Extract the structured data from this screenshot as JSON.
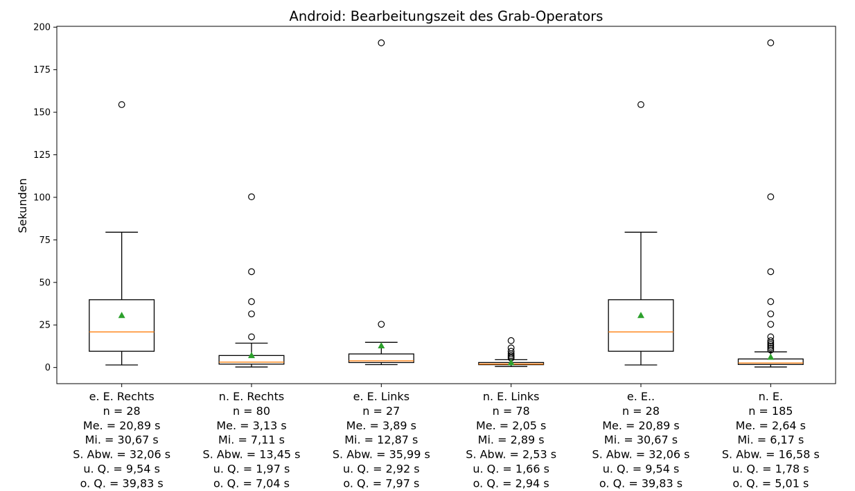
{
  "chart_data": {
    "type": "box",
    "title": "Android: Bearbeitungszeit des Grab-Operators",
    "xlabel": "",
    "ylabel": "Sekunden",
    "ylim": [
      -9.5,
      200.5
    ],
    "yticks": [
      0,
      25,
      50,
      75,
      100,
      125,
      150,
      175,
      200
    ],
    "grid": false,
    "legend": "none",
    "colors": {
      "box": "#000000",
      "median": "#ff7f0e",
      "mean": "#2ca02c",
      "flier": "#000000"
    },
    "boxes": [
      {
        "label_lines": [
          "e. E. Rechts",
          "n = 28",
          "Me. = 20,89 s",
          "Mi. = 30,67 s",
          "S. Abw. = 32,06 s",
          "u. Q. = 9,54 s",
          "o. Q. = 39,83 s"
        ],
        "whisker_low": 1.5,
        "q1": 9.54,
        "median": 20.89,
        "q3": 39.83,
        "whisker_high": 79.5,
        "mean": 30.67,
        "outliers": [
          154.5
        ]
      },
      {
        "label_lines": [
          "n. E. Rechts",
          "n = 80",
          "Me. = 3,13 s",
          "Mi. = 7,11 s",
          "S. Abw. = 13,45 s",
          "u. Q. = 1,97 s",
          "o. Q. = 7,04 s"
        ],
        "whisker_low": 0.3,
        "q1": 1.97,
        "median": 3.13,
        "q3": 7.04,
        "whisker_high": 14.3,
        "mean": 7.11,
        "outliers": [
          18,
          31.5,
          38.7,
          56.3,
          100.3
        ]
      },
      {
        "label_lines": [
          "e. E. Links",
          "n = 27",
          "Me. = 3,89 s",
          "Mi. = 12,87 s",
          "S. Abw. = 35,99 s",
          "u. Q. = 2,92 s",
          "o. Q. = 7,97 s"
        ],
        "whisker_low": 1.7,
        "q1": 2.92,
        "median": 3.89,
        "q3": 7.97,
        "whisker_high": 14.8,
        "mean": 12.87,
        "outliers": [
          25.4,
          190.8
        ]
      },
      {
        "label_lines": [
          "n. E. Links",
          "n = 78",
          "Me. = 2,05 s",
          "Mi. = 2,89 s",
          "S. Abw. = 2,53 s",
          "u. Q. = 1,66 s",
          "o. Q. = 2,94 s"
        ],
        "whisker_low": 0.6,
        "q1": 1.66,
        "median": 2.05,
        "q3": 2.94,
        "whisker_high": 4.6,
        "mean": 2.89,
        "outliers": [
          5.5,
          6.2,
          7.0,
          8.0,
          9.5,
          11.5,
          15.8
        ]
      },
      {
        "label_lines": [
          "e. E..",
          "n = 28",
          "Me. = 20,89 s",
          "Mi. = 30,67 s",
          "S. Abw. = 32,06 s",
          "u. Q. = 9,54 s",
          "o. Q. = 39,83 s"
        ],
        "whisker_low": 1.5,
        "q1": 9.54,
        "median": 20.89,
        "q3": 39.83,
        "whisker_high": 79.5,
        "mean": 30.67,
        "outliers": [
          154.5
        ]
      },
      {
        "label_lines": [
          "n. E.",
          "n = 185",
          "Me. = 2,64 s",
          "Mi. = 6,17 s",
          "S. Abw. = 16,58 s",
          "u. Q. = 1,78 s",
          "o. Q. = 5,01 s"
        ],
        "whisker_low": 0.3,
        "q1": 1.78,
        "median": 2.64,
        "q3": 5.01,
        "whisker_high": 9.2,
        "mean": 6.17,
        "outliers": [
          10.3,
          11.5,
          12.5,
          13.5,
          14.5,
          15.7,
          18.0,
          25.4,
          31.5,
          38.7,
          56.3,
          100.3,
          190.8
        ]
      }
    ]
  }
}
